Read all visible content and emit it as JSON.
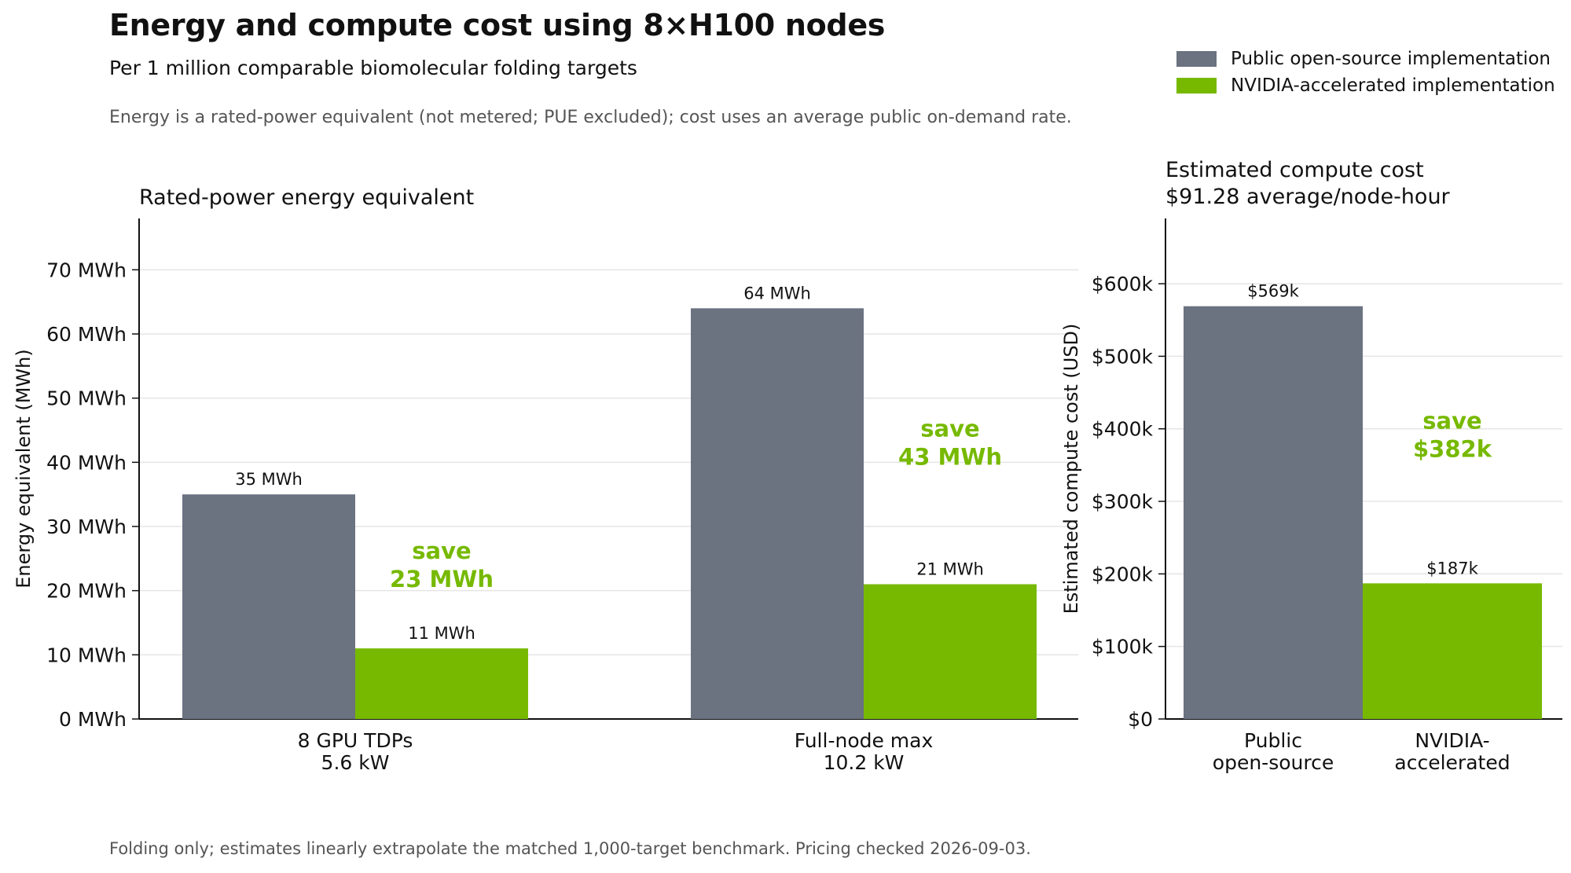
{
  "title": "Energy and compute cost using 8×H100 nodes",
  "subtitle": "Per 1 million comparable biomolecular folding targets",
  "note": "Energy is a rated-power equivalent (not metered; PUE excluded); cost uses an average public on-demand rate.",
  "footer": "Folding only; estimates linearly extrapolate the matched 1,000-target benchmark. Pricing checked 2026-09-03.",
  "legend": {
    "placement": "top-right",
    "items": [
      {
        "label": "Public open-source implementation",
        "color": "#6b7280"
      },
      {
        "label": "NVIDIA-accelerated implementation",
        "color": "#76b900"
      }
    ]
  },
  "colors": {
    "public": "#6b7280",
    "nvidia": "#76b900",
    "grid": "#e5e5e5",
    "axis": "#111111",
    "save": "#76b900"
  },
  "chart_data": [
    {
      "type": "bar",
      "title": "Rated-power energy equivalent",
      "ylabel": "Energy equivalent (MWh)",
      "xlabel": "",
      "ylim": [
        0,
        78
      ],
      "yticks": [
        0,
        10,
        20,
        30,
        40,
        50,
        60,
        70
      ],
      "ytick_labels": [
        "0 MWh",
        "10 MWh",
        "20 MWh",
        "30 MWh",
        "40 MWh",
        "50 MWh",
        "60 MWh",
        "70 MWh"
      ],
      "grid": true,
      "categories": [
        [
          "8 GPU TDPs",
          "5.6 kW"
        ],
        [
          "Full-node max",
          "10.2 kW"
        ]
      ],
      "series": [
        {
          "name": "Public open-source implementation",
          "values": [
            35,
            64
          ],
          "labels": [
            "35 MWh",
            "64 MWh"
          ]
        },
        {
          "name": "NVIDIA-accelerated implementation",
          "values": [
            11,
            21
          ],
          "labels": [
            "11 MWh",
            "21 MWh"
          ]
        }
      ],
      "annotations": [
        {
          "category": 0,
          "line1": "save",
          "line2": "23 MWh",
          "y": 25
        },
        {
          "category": 1,
          "line1": "save",
          "line2": "43 MWh",
          "y": 44
        }
      ]
    },
    {
      "type": "bar",
      "title": [
        "Estimated compute cost",
        "$91.28 average/node-hour"
      ],
      "ylabel": "Estimated compute cost (USD)",
      "xlabel": "",
      "ylim": [
        0,
        690000
      ],
      "yticks": [
        0,
        100000,
        200000,
        300000,
        400000,
        500000,
        600000
      ],
      "ytick_labels": [
        "$0",
        "$100k",
        "$200k",
        "$300k",
        "$400k",
        "$500k",
        "$600k"
      ],
      "grid": true,
      "categories": [
        [
          "Public",
          "open-source"
        ],
        [
          "NVIDIA-",
          "accelerated"
        ]
      ],
      "values": [
        569000,
        187000
      ],
      "labels": [
        "$569k",
        "$187k"
      ],
      "annotations": [
        {
          "line1": "save",
          "line2": "$382k",
          "y": 400000
        }
      ]
    }
  ]
}
